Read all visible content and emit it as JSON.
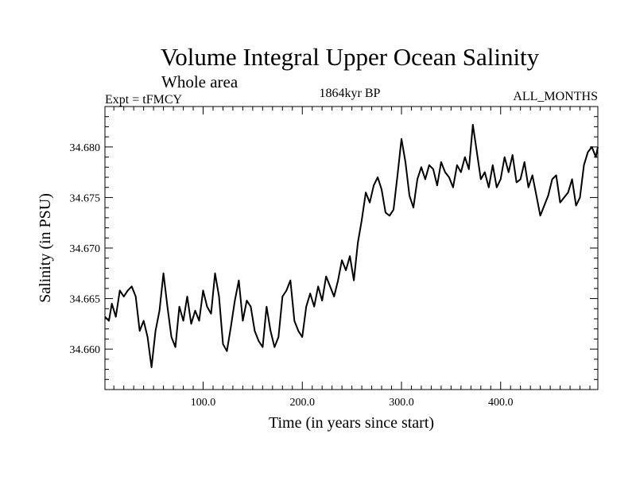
{
  "chart_data": {
    "type": "line",
    "title": "Volume Integral Upper Ocean Salinity",
    "subtitle": "Whole area",
    "experiment": "Expt = tFMCY",
    "period": "1864kyr BP",
    "months": "ALL_MONTHS",
    "xlabel": "Time (in years since start)",
    "ylabel": "Salinity (in PSU)",
    "xlim": [
      1,
      498
    ],
    "ylim": [
      34.656,
      34.684
    ],
    "x_ticks": [
      100,
      200,
      300,
      400
    ],
    "x_tick_labels": [
      "100.0",
      "200.0",
      "300.0",
      "400.0"
    ],
    "y_ticks": [
      34.66,
      34.665,
      34.67,
      34.675,
      34.68
    ],
    "y_tick_labels": [
      "34.660",
      "34.665",
      "34.670",
      "34.675",
      "34.680"
    ],
    "series": [
      {
        "name": "Salinity",
        "x": [
          1,
          5,
          8,
          12,
          16,
          20,
          24,
          28,
          32,
          36,
          40,
          44,
          48,
          52,
          56,
          60,
          64,
          68,
          72,
          76,
          80,
          84,
          88,
          92,
          96,
          100,
          104,
          108,
          112,
          116,
          120,
          124,
          128,
          132,
          136,
          140,
          144,
          148,
          152,
          156,
          160,
          164,
          168,
          172,
          176,
          180,
          184,
          188,
          192,
          196,
          200,
          204,
          208,
          212,
          216,
          220,
          224,
          228,
          232,
          236,
          240,
          244,
          248,
          252,
          256,
          260,
          264,
          268,
          272,
          276,
          280,
          284,
          288,
          292,
          296,
          300,
          304,
          308,
          312,
          316,
          320,
          324,
          328,
          332,
          336,
          340,
          344,
          348,
          352,
          356,
          360,
          364,
          368,
          372,
          376,
          380,
          384,
          388,
          392,
          396,
          400,
          404,
          408,
          412,
          416,
          420,
          424,
          428,
          432,
          436,
          440,
          444,
          448,
          452,
          456,
          460,
          464,
          468,
          472,
          476,
          480,
          484,
          488,
          492,
          496,
          498
        ],
        "values": [
          34.6632,
          34.6628,
          34.6645,
          34.6632,
          34.6658,
          34.6652,
          34.6658,
          34.6662,
          34.6652,
          34.6618,
          34.6628,
          34.6612,
          34.6582,
          34.6618,
          34.6638,
          34.6675,
          34.6642,
          34.6612,
          34.6602,
          34.6642,
          34.6628,
          34.6652,
          34.6625,
          34.6638,
          34.6628,
          34.6658,
          34.6642,
          34.6635,
          34.6675,
          34.6652,
          34.6605,
          34.6598,
          34.6622,
          34.6648,
          34.6668,
          34.6628,
          34.6648,
          34.6642,
          34.6618,
          34.6608,
          34.6602,
          34.6642,
          34.6618,
          34.6602,
          34.6612,
          34.6652,
          34.6658,
          34.6668,
          34.6628,
          34.6618,
          34.6612,
          34.6642,
          34.6655,
          34.6642,
          34.6662,
          34.6648,
          34.6672,
          34.6662,
          34.6652,
          34.6668,
          34.6688,
          34.6678,
          34.6692,
          34.6668,
          34.6705,
          34.6728,
          34.6755,
          34.6745,
          34.6762,
          34.677,
          34.6758,
          34.6735,
          34.6732,
          34.6738,
          34.6772,
          34.6808,
          34.6785,
          34.6752,
          34.674,
          34.6768,
          34.678,
          34.6768,
          34.6782,
          34.6778,
          34.6762,
          34.6785,
          34.6775,
          34.677,
          34.676,
          34.6782,
          34.6775,
          34.679,
          34.6778,
          34.6822,
          34.6795,
          34.6768,
          34.6775,
          34.676,
          34.6782,
          34.676,
          34.6768,
          34.679,
          34.6775,
          34.6792,
          34.6765,
          34.6768,
          34.6785,
          34.676,
          34.6772,
          34.6752,
          34.6732,
          34.6742,
          34.6752,
          34.6768,
          34.6772,
          34.6745,
          34.675,
          34.6755,
          34.6768,
          34.6742,
          34.675,
          34.6782,
          34.6795,
          34.68,
          34.679,
          34.68
        ]
      }
    ]
  }
}
